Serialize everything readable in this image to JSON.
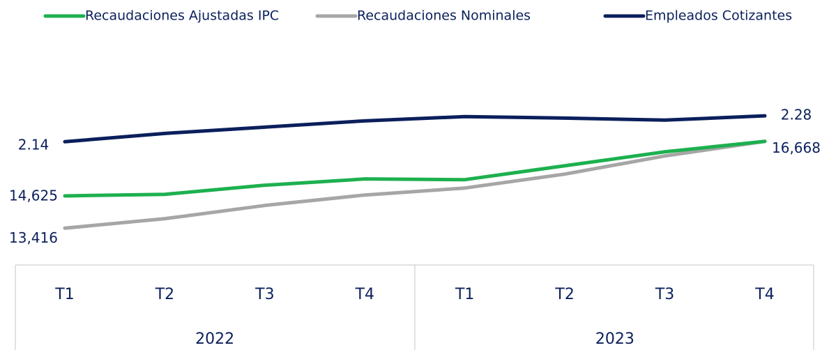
{
  "chart_data": {
    "type": "line",
    "categories": [
      "T1",
      "T2",
      "T3",
      "T4",
      "T1",
      "T2",
      "T3",
      "T4"
    ],
    "category_groups": [
      "2022",
      "2023"
    ],
    "ylim": [
      12300,
      19350
    ],
    "y2lim": [
      1.51,
      2.53
    ],
    "series": [
      {
        "name": "Recaudaciones Ajustadas IPC",
        "color": "#1db04f",
        "values": [
          14625,
          14684,
          15024,
          15259,
          15232,
          15754,
          16276,
          16668
        ],
        "value_labels": [
          "14,625",
          null,
          null,
          null,
          null,
          null,
          null,
          "16,668"
        ]
      },
      {
        "name": "Recaudaciones Nominales",
        "color": "#a6a6a6",
        "values": [
          13416,
          13771,
          14267,
          14658,
          14919,
          15441,
          16120,
          16668
        ],
        "value_labels": [
          "13,416",
          null,
          null,
          null,
          null,
          null,
          null,
          null
        ]
      },
      {
        "name": "Empleados Cotizantes",
        "color": "#0b1f5c",
        "axis": "y2",
        "values": [
          2.14,
          2.185,
          2.219,
          2.253,
          2.276,
          2.268,
          2.257,
          2.28
        ],
        "value_labels": [
          "2.14",
          null,
          null,
          null,
          null,
          null,
          null,
          "2.28"
        ]
      }
    ]
  }
}
